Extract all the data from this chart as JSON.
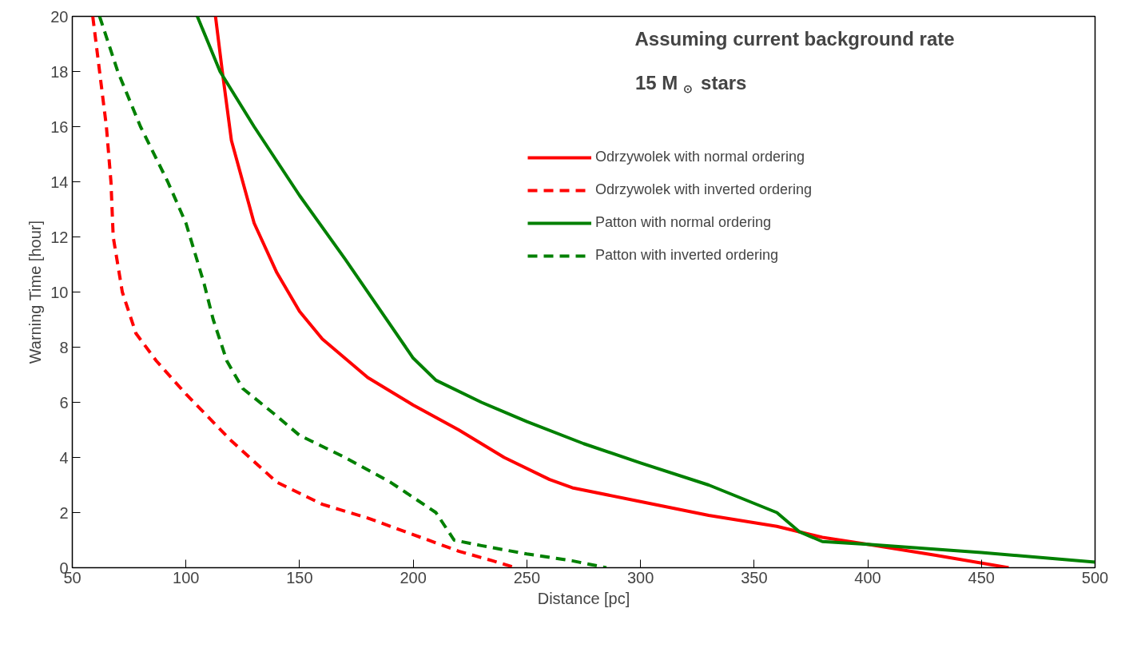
{
  "chart_data": {
    "type": "line",
    "xlabel": "Distance [pc]",
    "ylabel": "Warning Time [hour]",
    "annotations": [
      "Assuming current background rate",
      "15 M$_{⊙}$ stars"
    ],
    "xlim": [
      50,
      500
    ],
    "ylim": [
      0,
      20
    ],
    "xticks": [
      50,
      100,
      150,
      200,
      250,
      300,
      350,
      400,
      450,
      500
    ],
    "yticks": [
      0,
      2,
      4,
      6,
      8,
      10,
      12,
      14,
      16,
      18,
      20
    ],
    "grid": false,
    "legend": "top right",
    "marker": "none",
    "series": [
      {
        "name": "Odrzywolek with normal ordering",
        "color": "#ff0000",
        "line_style": "solid",
        "x": [
          113,
          116,
          120,
          130,
          140,
          150,
          160,
          180,
          200,
          220,
          240,
          260,
          270,
          300,
          330,
          360,
          380,
          400,
          430,
          462
        ],
        "values": [
          20,
          18,
          15.5,
          12.5,
          10.7,
          9.3,
          8.3,
          6.9,
          5.9,
          5.0,
          4.0,
          3.2,
          2.9,
          2.4,
          1.9,
          1.5,
          1.1,
          0.85,
          0.45,
          0
        ]
      },
      {
        "name": "Odrzywolek with inverted ordering",
        "color": "#ff0000",
        "line_style": "dashed",
        "x": [
          59,
          62,
          65,
          67,
          68,
          72,
          78,
          87,
          100,
          120,
          140,
          160,
          180,
          200,
          220,
          235,
          245
        ],
        "values": [
          20,
          18,
          16,
          14,
          12,
          10,
          8.5,
          7.5,
          6.3,
          4.6,
          3.1,
          2.3,
          1.8,
          1.2,
          0.6,
          0.25,
          0
        ]
      },
      {
        "name": "Patton with normal ordering",
        "color": "#008000",
        "line_style": "solid",
        "x": [
          105,
          115,
          130,
          150,
          170,
          190,
          200,
          210,
          230,
          250,
          275,
          300,
          330,
          360,
          370,
          380,
          400,
          450,
          500
        ],
        "values": [
          20,
          18,
          16,
          13.5,
          11.2,
          8.8,
          7.6,
          6.8,
          6,
          5.3,
          4.5,
          3.8,
          3,
          2,
          1.3,
          0.95,
          0.85,
          0.55,
          0.2
        ]
      },
      {
        "name": "Patton with inverted ordering",
        "color": "#008000",
        "line_style": "dashed",
        "x": [
          62,
          70,
          80,
          92,
          100,
          108,
          112,
          118,
          125,
          140,
          150,
          170,
          190,
          210,
          218,
          230,
          250,
          270,
          285
        ],
        "values": [
          20,
          18,
          16,
          14,
          12.5,
          10.3,
          9,
          7.5,
          6.5,
          5.5,
          4.8,
          4,
          3.1,
          2,
          1,
          0.8,
          0.5,
          0.25,
          0
        ]
      }
    ]
  }
}
